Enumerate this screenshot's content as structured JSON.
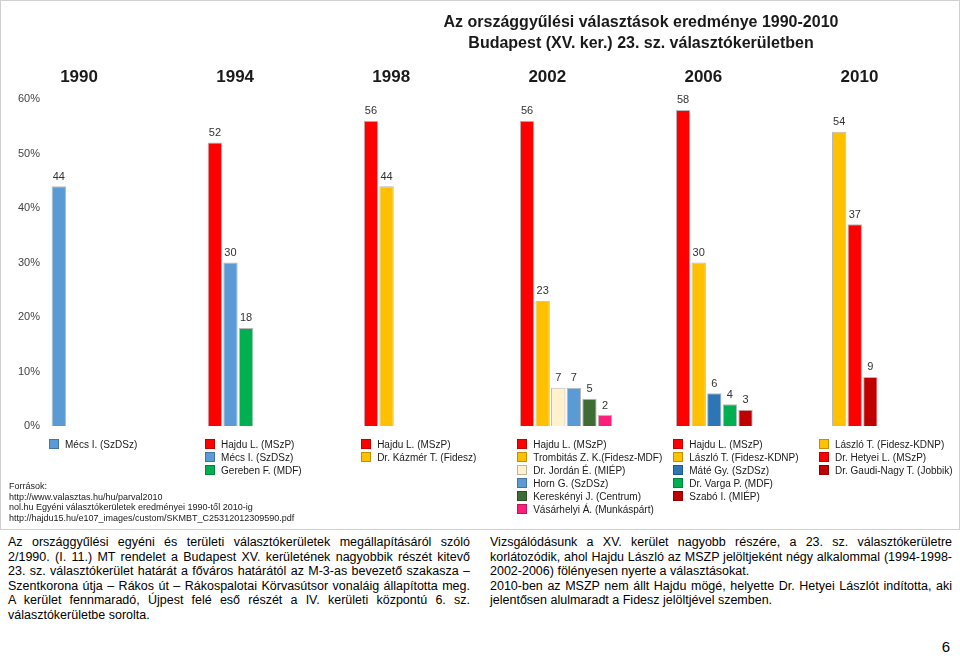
{
  "chart_data": {
    "type": "bar",
    "title": [
      "Az országgyűlési választások eredménye 1990-2010",
      "Budapest (XV. ker.) 23. sz. választókerületben"
    ],
    "groups": [
      {
        "label": "1990",
        "bars": [
          {
            "name": "Mécs I. (SzDSz)",
            "color": "#5b9bd5",
            "value": 44
          }
        ]
      },
      {
        "label": "1994",
        "bars": [
          {
            "name": "Hajdu L. (MSzP)",
            "color": "#ff0000",
            "value": 52
          },
          {
            "name": "Mécs I. (SzDSz)",
            "color": "#5b9bd5",
            "value": 30
          },
          {
            "name": "Gereben F. (MDF)",
            "color": "#00b050",
            "value": 18
          }
        ]
      },
      {
        "label": "1998",
        "bars": [
          {
            "name": "Hajdu L. (MSzP)",
            "color": "#ff0000",
            "value": 56
          },
          {
            "name": "Dr. Kázmér T. (Fidesz)",
            "color": "#ffc000",
            "value": 44
          }
        ]
      },
      {
        "label": "2002",
        "bars": [
          {
            "name": "Hajdu L. (MSzP)",
            "color": "#ff0000",
            "value": 56
          },
          {
            "name": "Trombitás Z. K.(Fidesz-MDF)",
            "color": "#ffc000",
            "value": 23
          },
          {
            "name": "Dr. Jordán É. (MIÉP)",
            "color": "#fff2cc",
            "value": 7
          },
          {
            "name": "Horn G. (SzDSz)",
            "color": "#5b9bd5",
            "value": 7
          },
          {
            "name": "Kereskényi J. (Centrum)",
            "color": "#3f6b34",
            "value": 5
          },
          {
            "name": "Vásárhelyi Á. (Munkáspárt)",
            "color": "#ff1f7a",
            "value": 2
          }
        ]
      },
      {
        "label": "2006",
        "bars": [
          {
            "name": "Hajdu L. (MSzP)",
            "color": "#ff0000",
            "value": 58
          },
          {
            "name": "László T. (Fidesz-KDNP)",
            "color": "#ffc000",
            "value": 30
          },
          {
            "name": "Máté Gy. (SzDSz)",
            "color": "#2e75b6",
            "value": 6
          },
          {
            "name": "Dr. Varga P. (MDF)",
            "color": "#00b050",
            "value": 4
          },
          {
            "name": "Szabó I. (MIÉP)",
            "color": "#c00000",
            "value": 3
          }
        ]
      },
      {
        "label": "2010",
        "bars": [
          {
            "name": "László T. (Fidesz-KDNP)",
            "color": "#ffc000",
            "value": 54
          },
          {
            "name": "Dr. Hetyei L. (MSzP)",
            "color": "#ff0000",
            "value": 37
          },
          {
            "name": "Dr. Gaudi-Nagy T. (Jobbik)",
            "color": "#c00000",
            "value": 9
          }
        ]
      }
    ],
    "ylim": [
      0,
      60
    ],
    "yticks": [
      {
        "value": 0,
        "label": "0%"
      },
      {
        "value": 10,
        "label": "10%"
      },
      {
        "value": 20,
        "label": "20%"
      },
      {
        "value": 30,
        "label": "30%"
      },
      {
        "value": 40,
        "label": "40%"
      },
      {
        "value": 50,
        "label": "50%"
      },
      {
        "value": 60,
        "label": "60%"
      }
    ],
    "grid": false,
    "data_labels": true,
    "tick_labels": "y",
    "sources": [
      "Források:",
      "http://www.valasztas.hu/hu/parval2010",
      "nol.hu Egyéni választókerületek eredményei 1990-től 2010-ig",
      "http://hajdu15.hu/e107_images/custom/SKMBT_C25312012309590.pdf"
    ]
  },
  "document": {
    "left_column": [
      "Az országgyűlési egyéni és területi választókerületek megállapításáról szóló 2/1990. (I. 11.) MT rendelet a Budapest XV. kerületének nagyobbik részét kitevő 23. sz. választókerület határát a főváros határától az M-3-as bevezető szakasza – Szentkorona útja – Rákos út – Rákospalotai Körvasútsor vonaláig állapította meg. A kerület fennmaradó, Újpest felé eső részét a IV. kerületi központú 6. sz. választókerületbe sorolta."
    ],
    "right_column": [
      "Vizsgálódásunk a XV. kerület nagyobb részére, a 23. sz. választókerületre korlátozódik, ahol Hajdu László az MSZP jelöltjeként négy alkalommal (1994-1998-2002-2006) fölényesen nyerte a választásokat.",
      "2010-ben az MSZP nem állt Hajdu mögé, helyette Dr. Hetyei Lászlót indította, aki jelentősen alulmaradt a Fidesz jelöltjével szemben."
    ],
    "page_number": "6"
  }
}
